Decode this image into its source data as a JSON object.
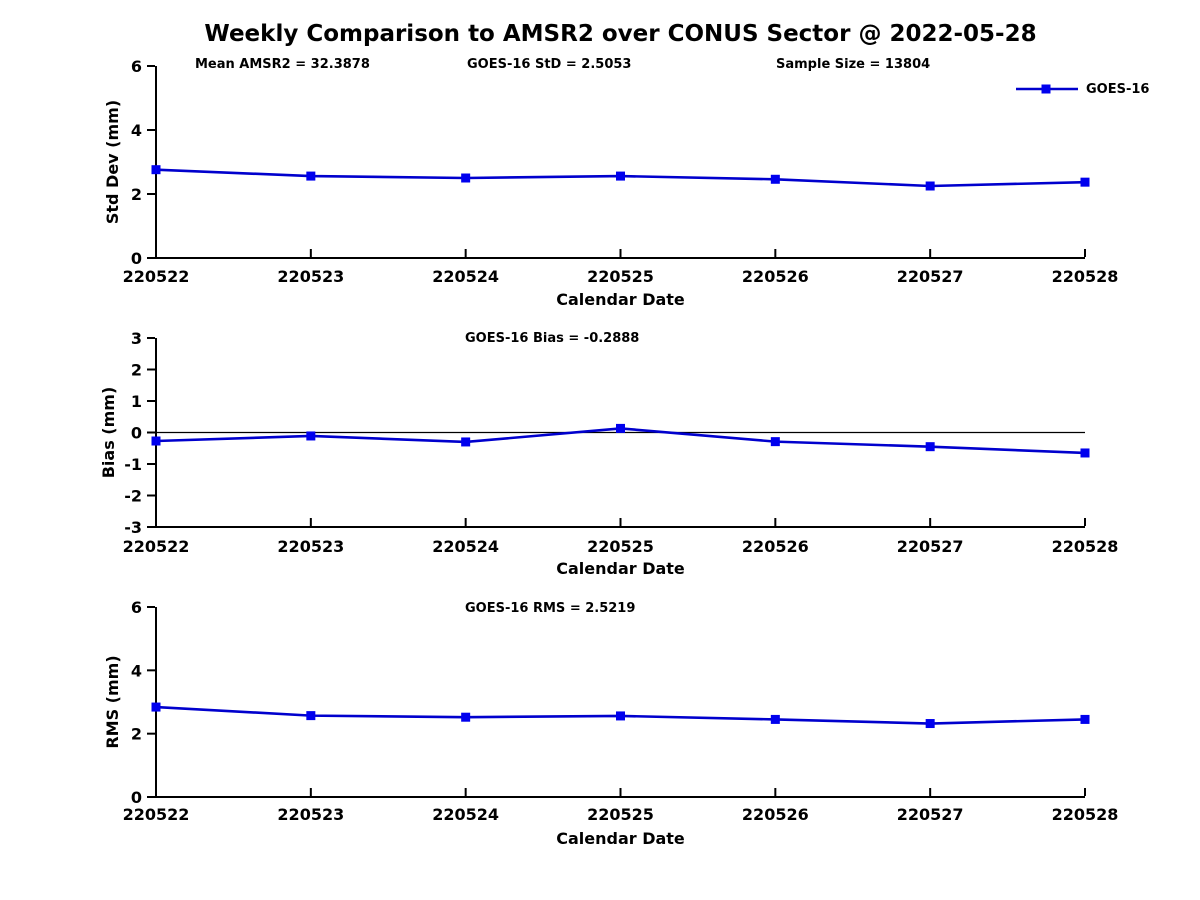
{
  "figure": {
    "title": "Weekly Comparison to AMSR2 over CONUS Sector @ 2022-05-28",
    "background": "#ffffff"
  },
  "legend": {
    "label": "GOES-16",
    "position": "top-right"
  },
  "colors": {
    "line": "#0000cd",
    "marker": "#0000ee",
    "axis": "#000000",
    "zero_line": "#000000",
    "text": "#000000"
  },
  "chart_data": [
    {
      "type": "line",
      "name": "std-dev-panel",
      "title": "",
      "annotations": [
        "Mean AMSR2 = 32.3878",
        "GOES-16 StD = 2.5053",
        "Sample Size = 13804"
      ],
      "categories": [
        "220522",
        "220523",
        "220524",
        "220525",
        "220526",
        "220527",
        "220528"
      ],
      "series": [
        {
          "name": "GOES-16",
          "values": [
            2.76,
            2.56,
            2.5,
            2.56,
            2.46,
            2.25,
            2.37
          ]
        }
      ],
      "xlabel": "Calendar Date",
      "ylabel": "Std Dev (mm)",
      "ylim": [
        0,
        6
      ],
      "yticks": [
        0,
        2,
        4,
        6
      ],
      "zero_line": false,
      "grid": false,
      "legend_entry": "GOES-16"
    },
    {
      "type": "line",
      "name": "bias-panel",
      "title": "GOES-16 Bias  = -0.2888",
      "annotations": [],
      "categories": [
        "220522",
        "220523",
        "220524",
        "220525",
        "220526",
        "220527",
        "220528"
      ],
      "series": [
        {
          "name": "GOES-16",
          "values": [
            -0.27,
            -0.11,
            -0.3,
            0.13,
            -0.29,
            -0.45,
            -0.65
          ]
        }
      ],
      "xlabel": "Calendar Date",
      "ylabel": "Bias (mm)",
      "ylim": [
        -3,
        3
      ],
      "yticks": [
        3,
        2,
        1,
        0,
        -1,
        -2,
        -3
      ],
      "zero_line": true,
      "grid": false,
      "legend_entry": "GOES-16"
    },
    {
      "type": "line",
      "name": "rms-panel",
      "title": "GOES-16 RMS = 2.5219",
      "annotations": [],
      "categories": [
        "220522",
        "220523",
        "220524",
        "220525",
        "220526",
        "220527",
        "220528"
      ],
      "series": [
        {
          "name": "GOES-16",
          "values": [
            2.84,
            2.57,
            2.52,
            2.56,
            2.45,
            2.32,
            2.45
          ]
        }
      ],
      "xlabel": "Calendar Date",
      "ylabel": "RMS (mm)",
      "ylim": [
        0,
        6
      ],
      "yticks": [
        0,
        2,
        4,
        6
      ],
      "zero_line": false,
      "grid": false,
      "legend_entry": "GOES-16"
    }
  ]
}
